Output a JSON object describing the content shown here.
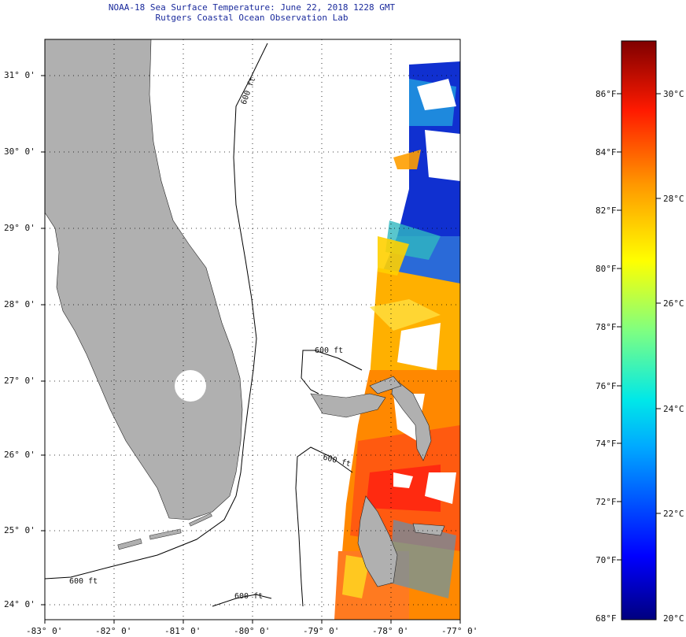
{
  "title": {
    "line1": "NOAA-18 Sea Surface Temperature:  June 22, 2018 1228 GMT",
    "line2": "Rutgers Coastal Ocean Observation Lab"
  },
  "map": {
    "lon_range": [
      -83,
      -77
    ],
    "lat_range": [
      23.8,
      31.4
    ],
    "lat_ticks": [
      {
        "value": 31,
        "label": "31° 0'"
      },
      {
        "value": 30,
        "label": "30° 0'"
      },
      {
        "value": 29,
        "label": "29° 0'"
      },
      {
        "value": 28,
        "label": "28° 0'"
      },
      {
        "value": 27,
        "label": "27° 0'"
      },
      {
        "value": 26,
        "label": "26° 0'"
      },
      {
        "value": 25,
        "label": "25° 0'"
      },
      {
        "value": 24,
        "label": "24° 0'"
      }
    ],
    "lon_ticks": [
      {
        "value": -83,
        "label": "-83° 0'"
      },
      {
        "value": -82,
        "label": "-82° 0'"
      },
      {
        "value": -81,
        "label": "-81° 0'"
      },
      {
        "value": -80,
        "label": "-80° 0'"
      },
      {
        "value": -79,
        "label": "-79° 0'"
      },
      {
        "value": -78,
        "label": "-78° 0'"
      },
      {
        "value": -77,
        "label": "-77° 0'"
      }
    ],
    "contour_labels": [
      "600 ft",
      "600 ft",
      "600 ft",
      "600 ft",
      "600 ft"
    ],
    "land_color": "#b0b0b0",
    "grid": true
  },
  "colorbar": {
    "f_labels": [
      "86°F",
      "84°F",
      "82°F",
      "80°F",
      "78°F",
      "76°F",
      "74°F",
      "72°F",
      "70°F",
      "68°F"
    ],
    "c_labels": [
      "30°C",
      "28°C",
      "26°C",
      "24°C",
      "22°C",
      "20°C"
    ],
    "range_c": [
      20,
      31.2
    ]
  }
}
